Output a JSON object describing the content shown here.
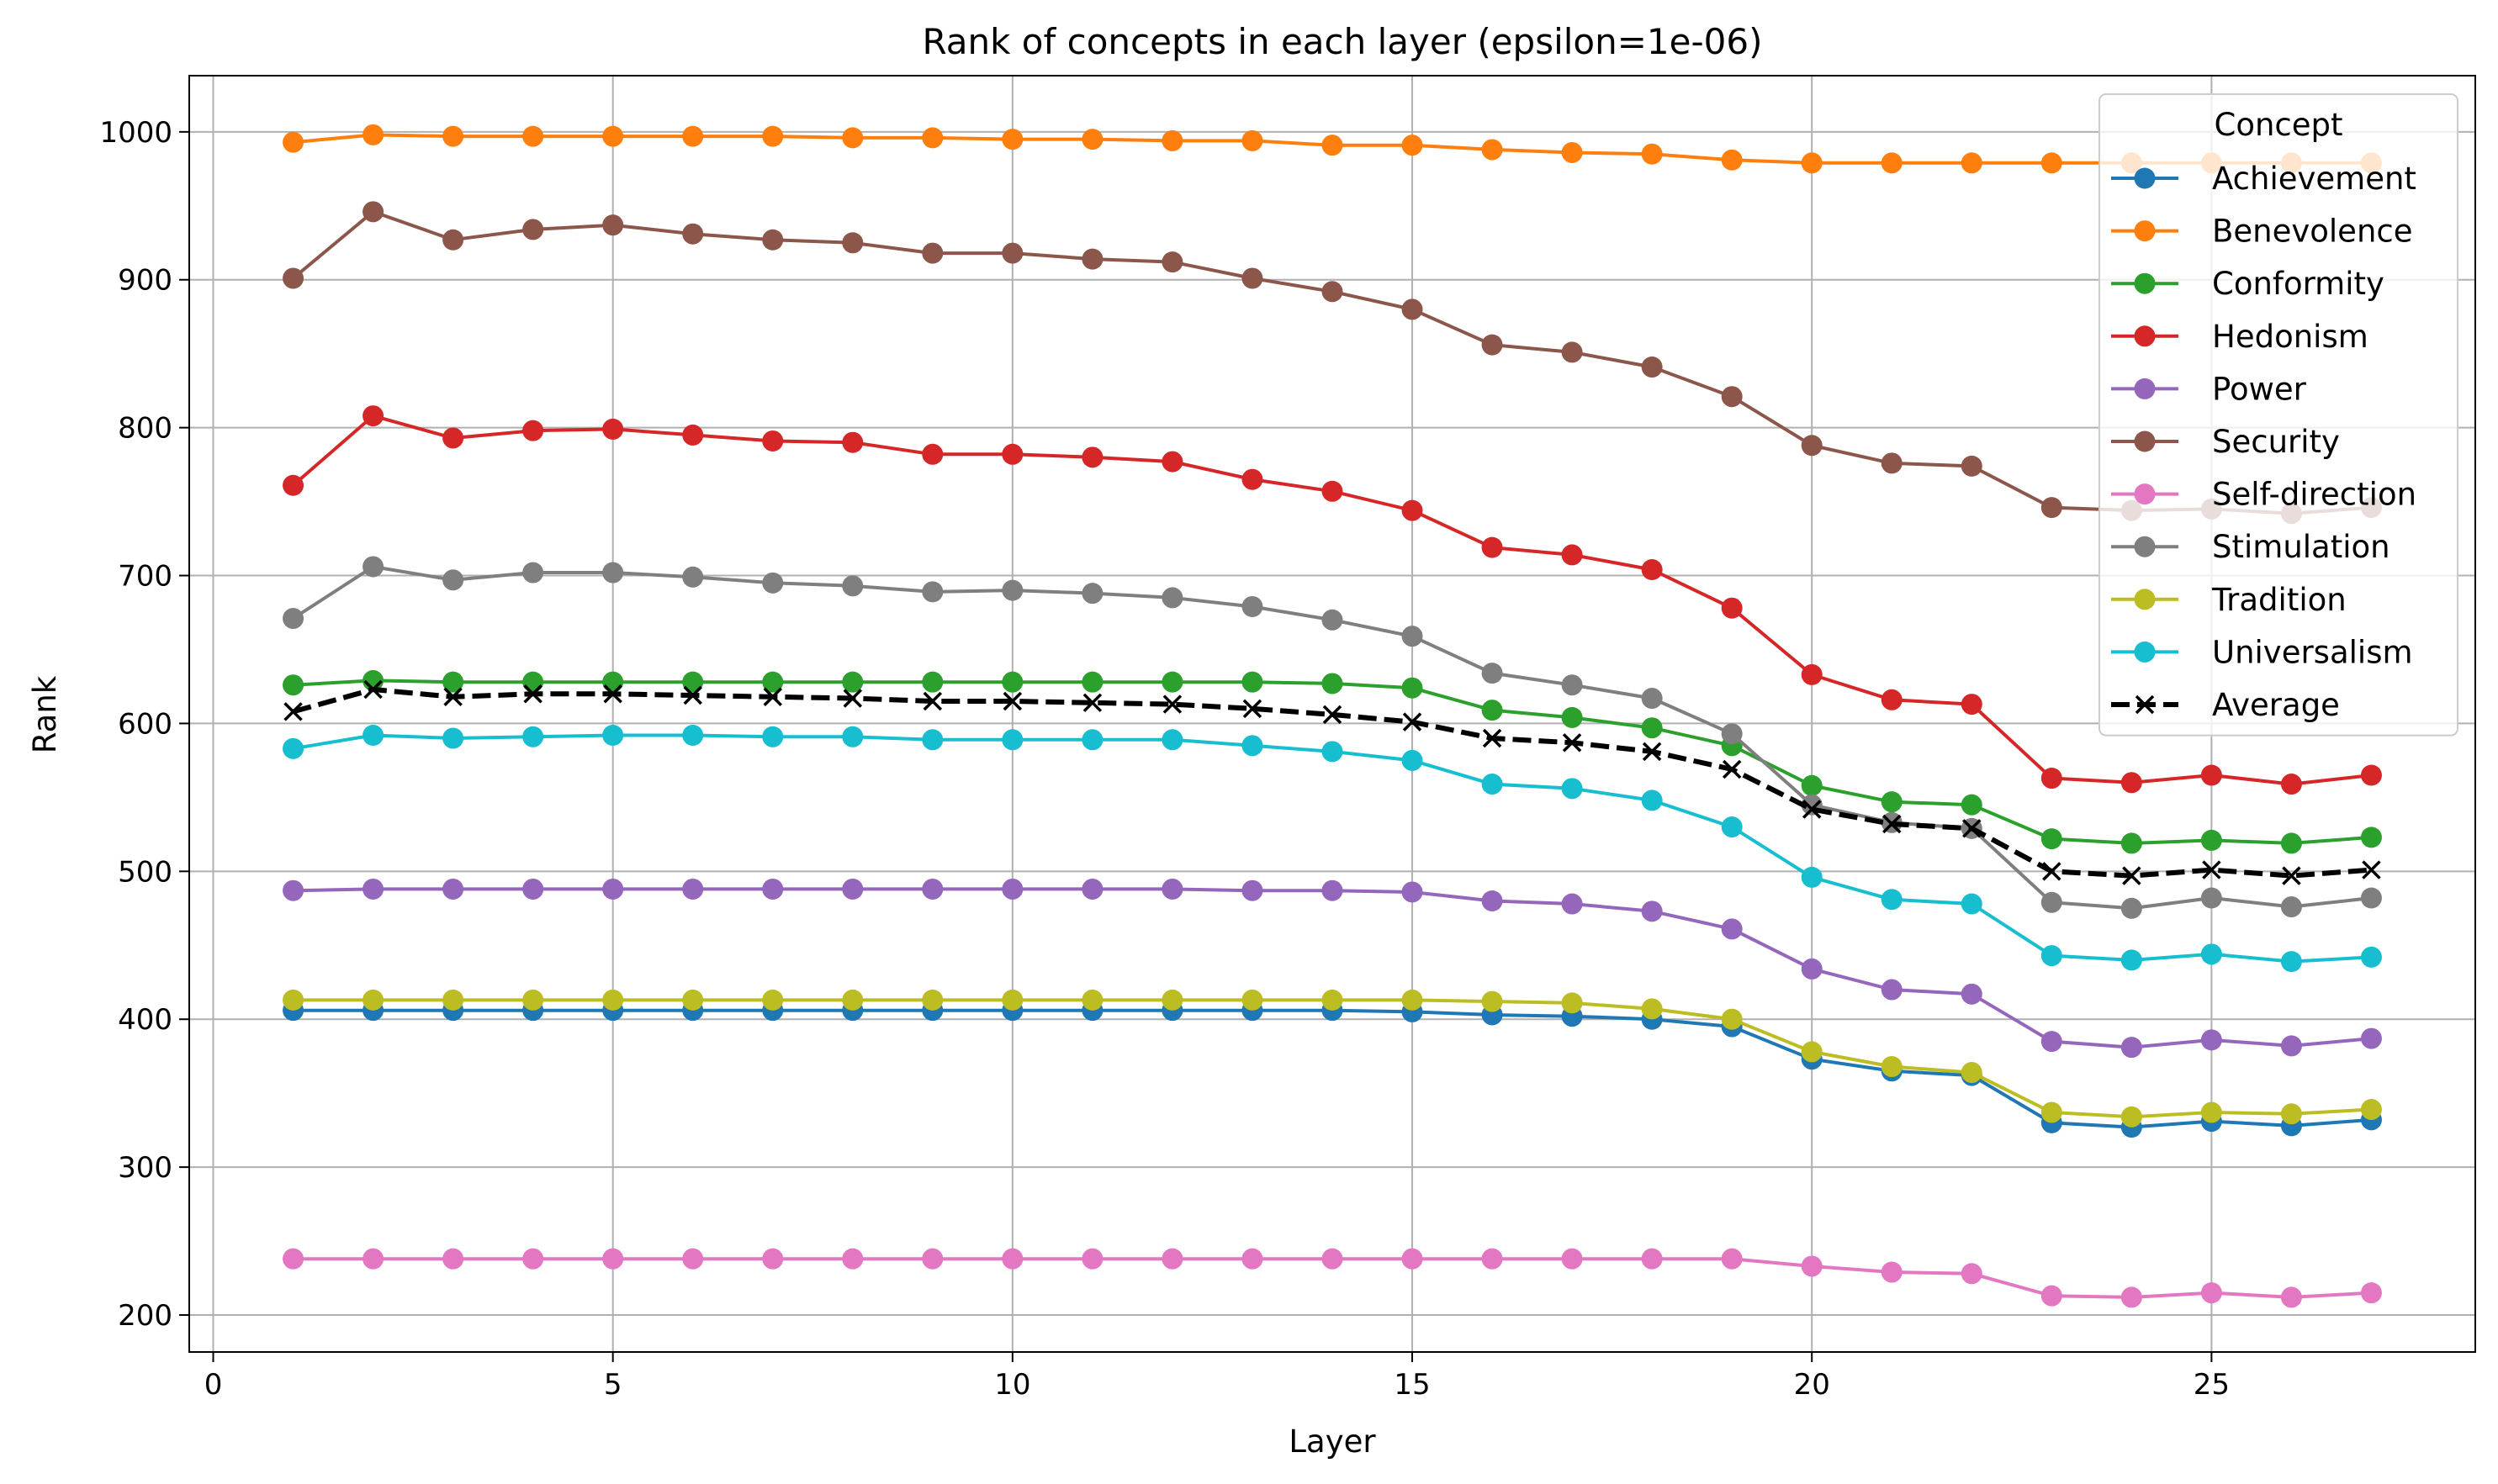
{
  "chart_data": {
    "type": "line",
    "title": "Rank of concepts in each layer (epsilon=1e-06)",
    "xlabel": "Layer",
    "ylabel": "Rank",
    "xlim": [
      -0.3,
      28.3
    ],
    "ylim": [
      175,
      1038
    ],
    "xticks": [
      0,
      5,
      10,
      15,
      20,
      25
    ],
    "yticks": [
      200,
      300,
      400,
      500,
      600,
      700,
      800,
      900,
      1000
    ],
    "grid": true,
    "legend": {
      "title": "Concept",
      "placement": "top-right"
    },
    "x": [
      1,
      2,
      3,
      4,
      5,
      6,
      7,
      8,
      9,
      10,
      11,
      12,
      13,
      14,
      15,
      16,
      17,
      18,
      19,
      20,
      21,
      22,
      23,
      24,
      25,
      26,
      27
    ],
    "series": [
      {
        "name": "Achievement",
        "color": "#1f77b4",
        "marker": "circle",
        "dashed": false,
        "values": [
          406,
          406,
          406,
          406,
          406,
          406,
          406,
          406,
          406,
          406,
          406,
          406,
          406,
          406,
          405,
          403,
          402,
          400,
          395,
          373,
          365,
          362,
          330,
          327,
          331,
          328,
          332
        ]
      },
      {
        "name": "Benevolence",
        "color": "#ff7f0e",
        "marker": "circle",
        "dashed": false,
        "values": [
          993,
          998,
          997,
          997,
          997,
          997,
          997,
          996,
          996,
          995,
          995,
          994,
          994,
          991,
          991,
          988,
          986,
          985,
          981,
          979,
          979,
          979,
          979,
          979,
          979,
          979,
          979
        ]
      },
      {
        "name": "Conformity",
        "color": "#2ca02c",
        "marker": "circle",
        "dashed": false,
        "values": [
          626,
          629,
          628,
          628,
          628,
          628,
          628,
          628,
          628,
          628,
          628,
          628,
          628,
          627,
          624,
          609,
          604,
          597,
          585,
          558,
          547,
          545,
          522,
          519,
          521,
          519,
          523
        ]
      },
      {
        "name": "Hedonism",
        "color": "#d62728",
        "marker": "circle",
        "dashed": false,
        "values": [
          761,
          808,
          793,
          798,
          799,
          795,
          791,
          790,
          782,
          782,
          780,
          777,
          765,
          757,
          744,
          719,
          714,
          704,
          678,
          633,
          616,
          613,
          563,
          560,
          565,
          559,
          565
        ]
      },
      {
        "name": "Power",
        "color": "#9467bd",
        "marker": "circle",
        "dashed": false,
        "values": [
          487,
          488,
          488,
          488,
          488,
          488,
          488,
          488,
          488,
          488,
          488,
          488,
          487,
          487,
          486,
          480,
          478,
          473,
          461,
          434,
          420,
          417,
          385,
          381,
          386,
          382,
          387
        ]
      },
      {
        "name": "Security",
        "color": "#8c564b",
        "marker": "circle",
        "dashed": false,
        "values": [
          901,
          946,
          927,
          934,
          937,
          931,
          927,
          925,
          918,
          918,
          914,
          912,
          901,
          892,
          880,
          856,
          851,
          841,
          821,
          788,
          776,
          774,
          746,
          744,
          745,
          742,
          746
        ]
      },
      {
        "name": "Self-direction",
        "color": "#e377c2",
        "marker": "circle",
        "dashed": false,
        "values": [
          238,
          238,
          238,
          238,
          238,
          238,
          238,
          238,
          238,
          238,
          238,
          238,
          238,
          238,
          238,
          238,
          238,
          238,
          238,
          233,
          229,
          228,
          213,
          212,
          215,
          212,
          215
        ]
      },
      {
        "name": "Stimulation",
        "color": "#7f7f7f",
        "marker": "circle",
        "dashed": false,
        "values": [
          671,
          706,
          697,
          702,
          702,
          699,
          695,
          693,
          689,
          690,
          688,
          685,
          679,
          670,
          659,
          634,
          626,
          617,
          593,
          545,
          533,
          529,
          479,
          475,
          482,
          476,
          482
        ]
      },
      {
        "name": "Tradition",
        "color": "#bcbd22",
        "marker": "circle",
        "dashed": false,
        "values": [
          413,
          413,
          413,
          413,
          413,
          413,
          413,
          413,
          413,
          413,
          413,
          413,
          413,
          413,
          413,
          412,
          411,
          407,
          400,
          378,
          368,
          364,
          337,
          334,
          337,
          336,
          339
        ]
      },
      {
        "name": "Universalism",
        "color": "#17becf",
        "marker": "circle",
        "dashed": false,
        "values": [
          583,
          592,
          590,
          591,
          592,
          592,
          591,
          591,
          589,
          589,
          589,
          589,
          585,
          581,
          575,
          559,
          556,
          548,
          530,
          496,
          481,
          478,
          443,
          440,
          444,
          439,
          442
        ]
      },
      {
        "name": "Average",
        "color": "#000000",
        "marker": "x",
        "dashed": true,
        "values": [
          608,
          623,
          618,
          620,
          620,
          619,
          618,
          617,
          615,
          615,
          614,
          613,
          610,
          606,
          601,
          590,
          587,
          581,
          569,
          542,
          532,
          529,
          500,
          497,
          501,
          497,
          501
        ]
      }
    ]
  }
}
